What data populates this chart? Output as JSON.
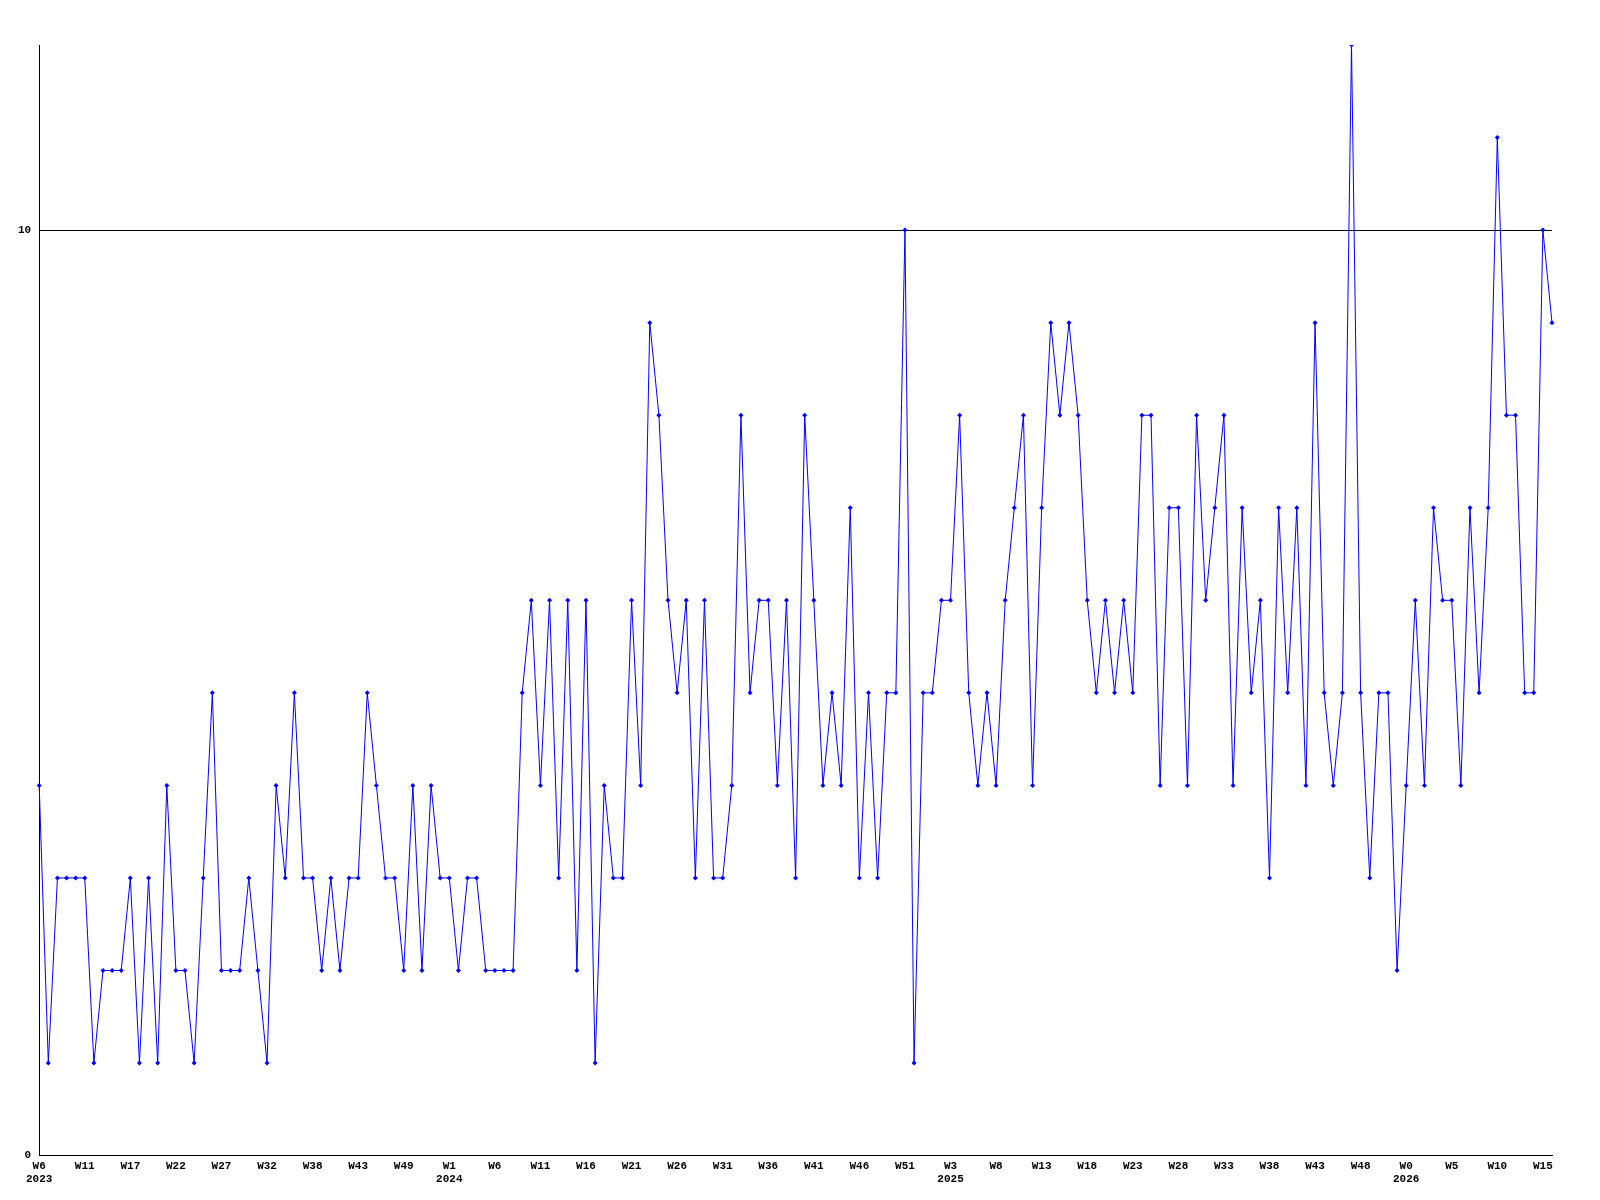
{
  "chart_data": {
    "type": "line",
    "categories": [
      "W6\n2023",
      null,
      null,
      null,
      null,
      "W11",
      null,
      null,
      null,
      null,
      "W17",
      null,
      null,
      null,
      null,
      "W22",
      null,
      null,
      null,
      null,
      "W27",
      null,
      null,
      null,
      null,
      "W32",
      null,
      null,
      null,
      null,
      "W38",
      null,
      null,
      null,
      null,
      "W43",
      null,
      null,
      null,
      null,
      "W49",
      null,
      null,
      null,
      null,
      "W1\n2024",
      null,
      null,
      null,
      null,
      "W6",
      null,
      null,
      null,
      null,
      "W11",
      null,
      null,
      null,
      null,
      "W16",
      null,
      null,
      null,
      null,
      "W21",
      null,
      null,
      null,
      null,
      "W26",
      null,
      null,
      null,
      null,
      "W31",
      null,
      null,
      null,
      null,
      "W36",
      null,
      null,
      null,
      null,
      "W41",
      null,
      null,
      null,
      null,
      "W46",
      null,
      null,
      null,
      null,
      "W51",
      null,
      null,
      null,
      null,
      "W3\n2025",
      null,
      null,
      null,
      null,
      "W8",
      null,
      null,
      null,
      null,
      "W13",
      null,
      null,
      null,
      null,
      "W18",
      null,
      null,
      null,
      null,
      "W23",
      null,
      null,
      null,
      null,
      "W28",
      null,
      null,
      null,
      null,
      "W33",
      null,
      null,
      null,
      null,
      "W38",
      null,
      null,
      null,
      null,
      "W43",
      null,
      null,
      null,
      null,
      "W48",
      null,
      null,
      null,
      null,
      "W0\n2026",
      null,
      null,
      null,
      null,
      "W5",
      null,
      null,
      null,
      null,
      "W10",
      null,
      null,
      null,
      null,
      "W15",
      null
    ],
    "series": [
      {
        "color": "#0000ff",
        "values": [
          4,
          1,
          3,
          3,
          3,
          3,
          1,
          2,
          2,
          2,
          3,
          1,
          3,
          1,
          4,
          2,
          2,
          1,
          3,
          5,
          2,
          2,
          2,
          3,
          2,
          1,
          4,
          3,
          5,
          3,
          3,
          2,
          3,
          2,
          3,
          3,
          5,
          4,
          3,
          3,
          2,
          4,
          2,
          4,
          3,
          3,
          2,
          3,
          3,
          2,
          2,
          2,
          2,
          5,
          6,
          4,
          6,
          3,
          6,
          2,
          6,
          1,
          4,
          3,
          3,
          6,
          4,
          9,
          8,
          6,
          5,
          6,
          3,
          6,
          3,
          3,
          4,
          8,
          5,
          6,
          6,
          4,
          6,
          3,
          8,
          6,
          4,
          5,
          4,
          7,
          3,
          5,
          3,
          5,
          5,
          10,
          1,
          5,
          5,
          6,
          6,
          8,
          5,
          4,
          5,
          4,
          6,
          7,
          8,
          4,
          7,
          9,
          8,
          9,
          8,
          6,
          5,
          6,
          5,
          6,
          5,
          8,
          8,
          4,
          7,
          7,
          4,
          8,
          6,
          7,
          8,
          4,
          7,
          5,
          6,
          3,
          7,
          5,
          7,
          4,
          9,
          5,
          4,
          5,
          12,
          5,
          3,
          5,
          5,
          2,
          4,
          6,
          4,
          7,
          6,
          6,
          4,
          7,
          5,
          7,
          11,
          8,
          8,
          5,
          5,
          10,
          9
        ]
      }
    ],
    "ylim": [
      0,
      12
    ],
    "yticks": [
      0,
      10
    ],
    "grid": "y",
    "legend": false,
    "marker": "diamond",
    "line_style": "solid"
  }
}
